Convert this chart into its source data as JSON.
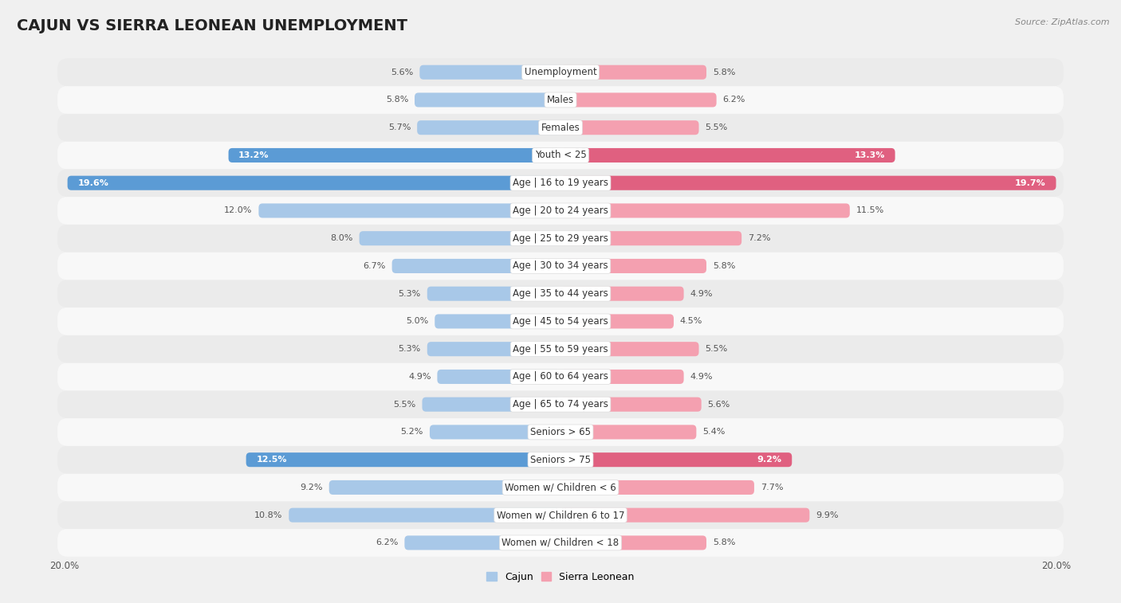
{
  "title": "CAJUN VS SIERRA LEONEAN UNEMPLOYMENT",
  "source": "Source: ZipAtlas.com",
  "categories": [
    "Unemployment",
    "Males",
    "Females",
    "Youth < 25",
    "Age | 16 to 19 years",
    "Age | 20 to 24 years",
    "Age | 25 to 29 years",
    "Age | 30 to 34 years",
    "Age | 35 to 44 years",
    "Age | 45 to 54 years",
    "Age | 55 to 59 years",
    "Age | 60 to 64 years",
    "Age | 65 to 74 years",
    "Seniors > 65",
    "Seniors > 75",
    "Women w/ Children < 6",
    "Women w/ Children 6 to 17",
    "Women w/ Children < 18"
  ],
  "cajun_values": [
    5.6,
    5.8,
    5.7,
    13.2,
    19.6,
    12.0,
    8.0,
    6.7,
    5.3,
    5.0,
    5.3,
    4.9,
    5.5,
    5.2,
    12.5,
    9.2,
    10.8,
    6.2
  ],
  "sierra_values": [
    5.8,
    6.2,
    5.5,
    13.3,
    19.7,
    11.5,
    7.2,
    5.8,
    4.9,
    4.5,
    5.5,
    4.9,
    5.6,
    5.4,
    9.2,
    7.7,
    9.9,
    5.8
  ],
  "cajun_color": "#a8c8e8",
  "sierra_color": "#f4a0b0",
  "cajun_highlight_indices": [
    3,
    4,
    14
  ],
  "sierra_highlight_indices": [
    3,
    4,
    14
  ],
  "cajun_highlight_color": "#5b9bd5",
  "sierra_highlight_color": "#e06080",
  "row_color_even": "#ebebeb",
  "row_color_odd": "#f8f8f8",
  "bg_color": "#f0f0f0",
  "max_value": 20.0,
  "legend_cajun": "Cajun",
  "legend_sierra": "Sierra Leonean",
  "title_fontsize": 14,
  "label_fontsize": 8.5,
  "value_fontsize": 8,
  "bar_height": 0.52
}
